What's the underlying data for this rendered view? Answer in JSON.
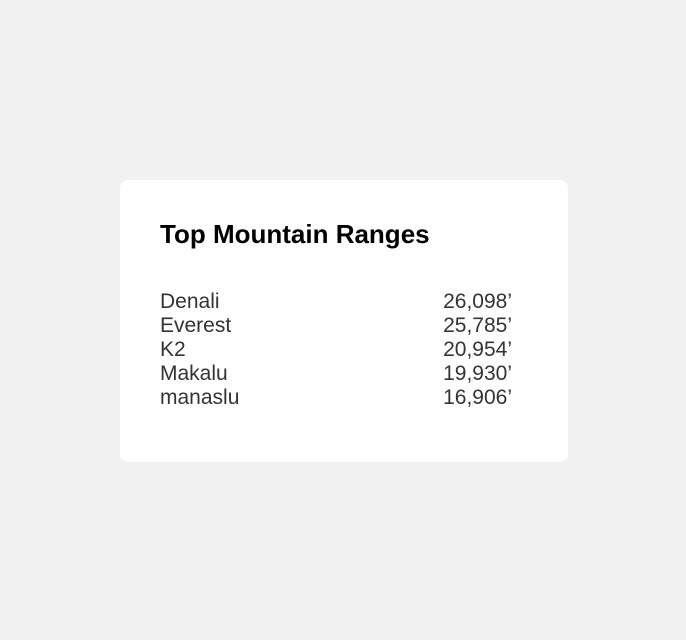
{
  "card": {
    "title": "Top Mountain Ranges",
    "ranges": [
      {
        "name": "Denali",
        "height": "26,098’"
      },
      {
        "name": "Everest",
        "height": "25,785’"
      },
      {
        "name": "K2",
        "height": "20,954’"
      },
      {
        "name": "Makalu",
        "height": "19,930’"
      },
      {
        "name": "manaslu",
        "height": "16,906’"
      }
    ]
  },
  "colors": {
    "page_background": "#f1f1f1",
    "card_background": "#ffffff",
    "title_text": "#000000",
    "row_text": "#333333"
  }
}
